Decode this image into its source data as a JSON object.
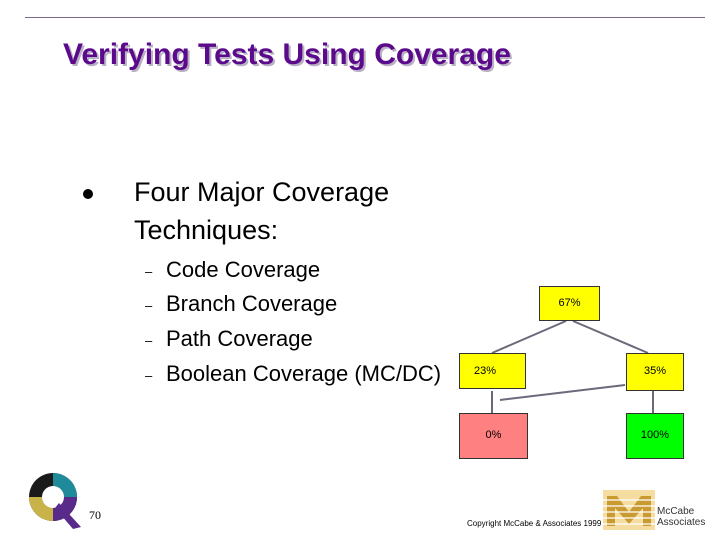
{
  "slide": {
    "title": "Verifying Tests Using Coverage",
    "bullet": "Four Major Coverage Techniques:",
    "subitems": [
      "Code Coverage",
      "Branch Coverage",
      "Path Coverage",
      "Boolean Coverage (MC/DC)"
    ],
    "dash": "–"
  },
  "diagram": {
    "top": "67%",
    "mid_left": "23%",
    "mid_right": "35%",
    "bottom_left": "0%",
    "bottom_right": "100%",
    "colors": {
      "yellow": "#ffff00",
      "pink": "#ff8080",
      "green": "#00ff00"
    }
  },
  "footer": {
    "page_number": "70",
    "copyright": "Copyright McCabe & Associates 1999",
    "brand_line1": "McCabe",
    "brand_line2": "Associates"
  }
}
